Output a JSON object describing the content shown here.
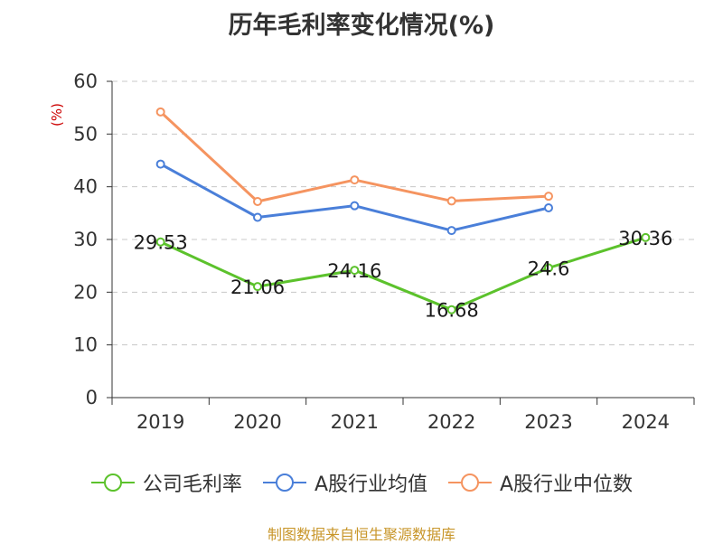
{
  "chart_data": {
    "type": "line",
    "title": "历年毛利率变化情况(%)",
    "ylabel": "(%)",
    "xlabel": "",
    "categories": [
      "2019",
      "2020",
      "2021",
      "2022",
      "2023",
      "2024"
    ],
    "ylim": [
      0,
      60
    ],
    "yticks": [
      0,
      10,
      20,
      30,
      40,
      50,
      60
    ],
    "grid": true,
    "legend_position": "bottom",
    "series": [
      {
        "name": "公司毛利率",
        "color": "#5cc22c",
        "values": [
          29.53,
          21.06,
          24.16,
          16.68,
          24.6,
          30.36
        ],
        "labels": [
          "29.53",
          "21.06",
          "24.16",
          "16.68",
          "24.6",
          "30.36"
        ]
      },
      {
        "name": "A股行业均值",
        "color": "#4a7fd9",
        "values": [
          44.3,
          34.2,
          36.4,
          31.7,
          36.0,
          null
        ]
      },
      {
        "name": "A股行业中位数",
        "color": "#f59460",
        "values": [
          54.2,
          37.2,
          41.3,
          37.3,
          38.2,
          null
        ]
      }
    ]
  },
  "source": "制图数据来自恒生聚源数据库"
}
